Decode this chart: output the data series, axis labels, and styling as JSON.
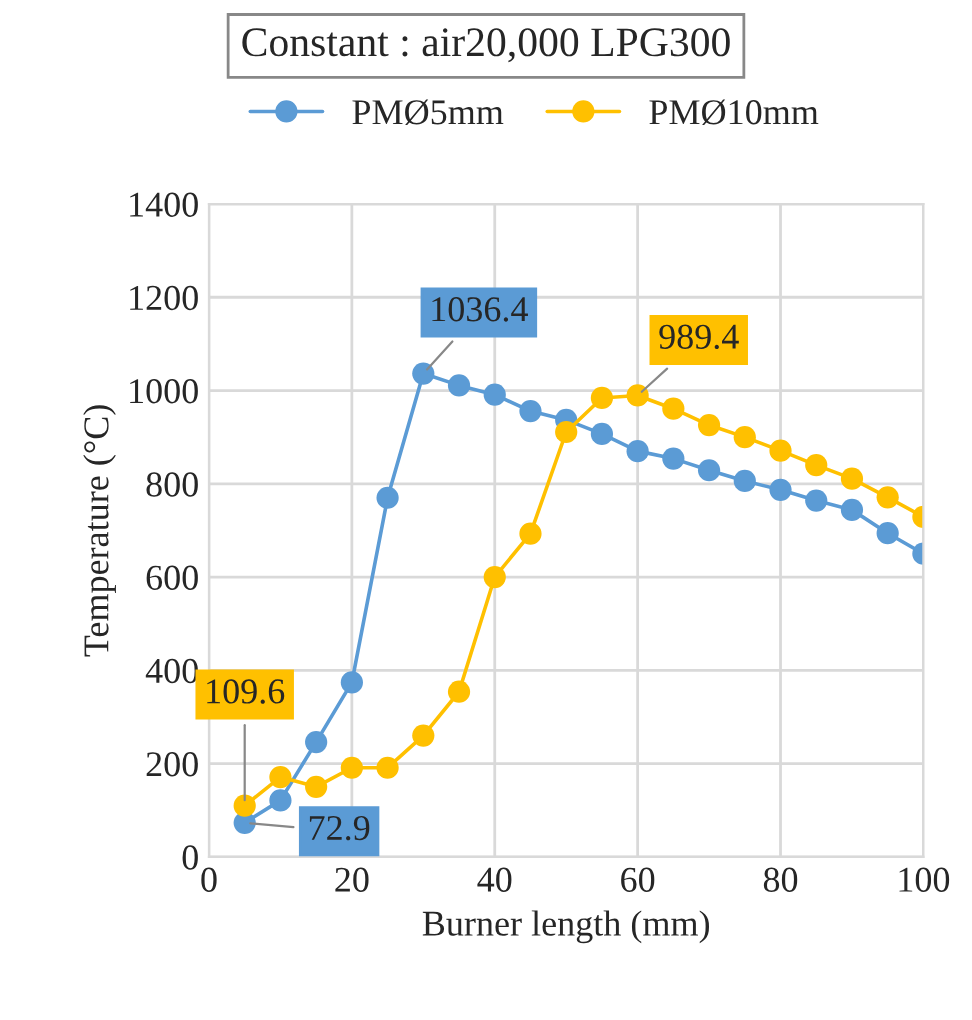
{
  "chart_data": {
    "type": "line",
    "title": "Constant : air20,000 LPG300",
    "xlabel": "Burner length (mm)",
    "ylabel": "Temperature (°C)",
    "x": [
      5,
      10,
      15,
      20,
      25,
      30,
      35,
      40,
      45,
      50,
      55,
      60,
      65,
      70,
      75,
      80,
      85,
      90,
      95,
      100
    ],
    "series": [
      {
        "name": "PMØ5mm",
        "color": "#5b9bd5",
        "values": [
          72.9,
          121,
          246,
          374,
          770,
          1036.4,
          1011,
          991,
          956,
          937,
          907,
          870,
          854,
          829,
          806,
          787,
          764,
          744,
          694,
          650
        ]
      },
      {
        "name": "PMØ10mm",
        "color": "#ffc000",
        "values": [
          109.6,
          171,
          150,
          191,
          191,
          260,
          354,
          600,
          693,
          911,
          984,
          989.4,
          961,
          926,
          900,
          871,
          840,
          811,
          771,
          729
        ]
      }
    ],
    "annotations": [
      {
        "text": "72.9",
        "x": 5,
        "y": 72.9
      },
      {
        "text": "1036.4",
        "x": 30,
        "y": 1036.4
      },
      {
        "text": "109.6",
        "x": 5,
        "y": 109.6
      },
      {
        "text": "989.4",
        "x": 60,
        "y": 989.4
      }
    ],
    "xlim": [
      0,
      100
    ],
    "xticks": [
      0,
      20,
      40,
      60,
      80,
      100
    ],
    "ylim": [
      0,
      1400
    ],
    "yticks": [
      0,
      200,
      400,
      600,
      800,
      1000,
      1200,
      1400
    ],
    "grid": true,
    "legend": "top",
    "marker": "circle",
    "line_style": "solid"
  }
}
